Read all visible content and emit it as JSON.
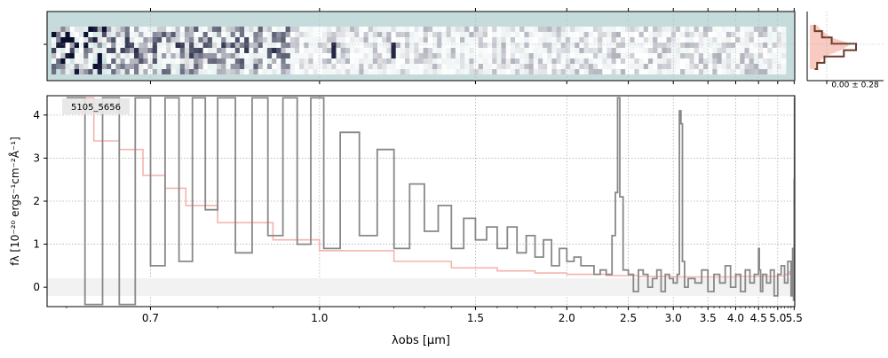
{
  "chart_data": [
    {
      "type": "heatmap",
      "panel": "2d-spectrum",
      "colormap": [
        "#c6dcdc",
        "#ffffff",
        "#0a0f2e"
      ],
      "background": "#c6dcdc",
      "rows": 9,
      "description_visible": "spatial rows vs wavelength; noisy, dark at blue end"
    },
    {
      "type": "line",
      "panel": "profile",
      "x_tick_label": "0.00 ± 0.28",
      "series": [
        {
          "color": "#6b3a2a",
          "values": [
            0.1,
            0.25,
            0.45,
            0.95,
            0.7,
            0.3,
            0.15,
            0.1
          ]
        }
      ],
      "band_color": "#f5b3a8"
    },
    {
      "type": "line",
      "panel": "1d-spectrum",
      "xlabel": "λobs [μm]",
      "ylabel": "fλ [10⁻²⁰ ergs⁻¹cm⁻²Å⁻¹]",
      "xscale": "reciprocal",
      "xlim": [
        0.58,
        5.52
      ],
      "ylim": [
        -0.45,
        4.45
      ],
      "xticks": [
        "0.7",
        "1.0",
        "1.5",
        "2.0",
        "2.5",
        "3.0",
        "3.5",
        "4.0",
        "4.5",
        "5.0",
        "5.5"
      ],
      "yticks": [
        "0",
        "1",
        "2",
        "3",
        "4"
      ],
      "grid": true,
      "label": "5105_5656",
      "series": [
        {
          "style": "step",
          "color": "#888888",
          "x": [
            0.6,
            0.62,
            0.64,
            0.66,
            0.68,
            0.7,
            0.72,
            0.74,
            0.76,
            0.78,
            0.8,
            0.83,
            0.86,
            0.89,
            0.92,
            0.95,
            0.98,
            1.01,
            1.05,
            1.1,
            1.15,
            1.2,
            1.25,
            1.3,
            1.35,
            1.4,
            1.45,
            1.5,
            1.55,
            1.6,
            1.65,
            1.7,
            1.75,
            1.8,
            1.85,
            1.9,
            1.95,
            2.0,
            2.05,
            2.1,
            2.15,
            2.2,
            2.25,
            2.3,
            2.35,
            2.38,
            2.4,
            2.42,
            2.45,
            2.5,
            2.55,
            2.6,
            2.65,
            2.7,
            2.75,
            2.8,
            2.85,
            2.9,
            2.95,
            3.0,
            3.05,
            3.08,
            3.1,
            3.12,
            3.15,
            3.2,
            3.3,
            3.4,
            3.5,
            3.6,
            3.7,
            3.8,
            3.9,
            4.0,
            4.1,
            4.2,
            4.3,
            4.4,
            4.5,
            4.52,
            4.55,
            4.6,
            4.7,
            4.8,
            4.9,
            5.0,
            5.1,
            5.2,
            5.3,
            5.4,
            5.45,
            5.48,
            5.5,
            5.51
          ],
          "y": [
            4.4,
            -0.4,
            4.4,
            -0.4,
            4.4,
            0.5,
            4.4,
            0.6,
            4.4,
            1.8,
            4.4,
            0.8,
            4.4,
            1.2,
            4.4,
            1.0,
            4.4,
            0.9,
            3.6,
            1.2,
            3.2,
            0.9,
            2.4,
            1.3,
            1.9,
            0.9,
            1.6,
            1.1,
            1.4,
            0.9,
            1.4,
            0.8,
            1.2,
            0.7,
            1.1,
            0.5,
            0.9,
            0.6,
            0.7,
            0.5,
            0.5,
            0.3,
            0.4,
            0.3,
            1.2,
            2.2,
            4.4,
            2.1,
            0.4,
            0.3,
            -0.1,
            0.4,
            0.3,
            0.0,
            0.2,
            0.4,
            -0.1,
            0.3,
            0.2,
            0.1,
            0.3,
            4.1,
            3.8,
            0.6,
            0.0,
            0.2,
            0.1,
            0.4,
            -0.1,
            0.3,
            0.1,
            0.5,
            0.0,
            0.3,
            -0.1,
            0.4,
            0.1,
            0.3,
            0.9,
            0.4,
            -0.1,
            0.3,
            0.1,
            0.4,
            -0.2,
            0.3,
            0.5,
            0.1,
            0.6,
            -0.2,
            0.9,
            -0.3,
            2.5,
            4.4
          ]
        },
        {
          "style": "step",
          "color": "#f5b3ad",
          "x": [
            0.6,
            0.63,
            0.66,
            0.69,
            0.72,
            0.75,
            0.8,
            0.9,
            1.0,
            1.2,
            1.4,
            1.6,
            1.8,
            2.0,
            2.3,
            2.6,
            3.0,
            3.5,
            4.0,
            4.5,
            5.0,
            5.2,
            5.35,
            5.42,
            5.47,
            5.5,
            5.51
          ],
          "y": [
            4.4,
            3.4,
            3.2,
            2.6,
            2.3,
            1.9,
            1.5,
            1.1,
            0.85,
            0.6,
            0.45,
            0.38,
            0.33,
            0.3,
            0.27,
            0.25,
            0.24,
            0.24,
            0.25,
            0.25,
            0.26,
            0.3,
            0.36,
            0.45,
            0.7,
            2.5,
            4.4
          ]
        }
      ]
    }
  ]
}
